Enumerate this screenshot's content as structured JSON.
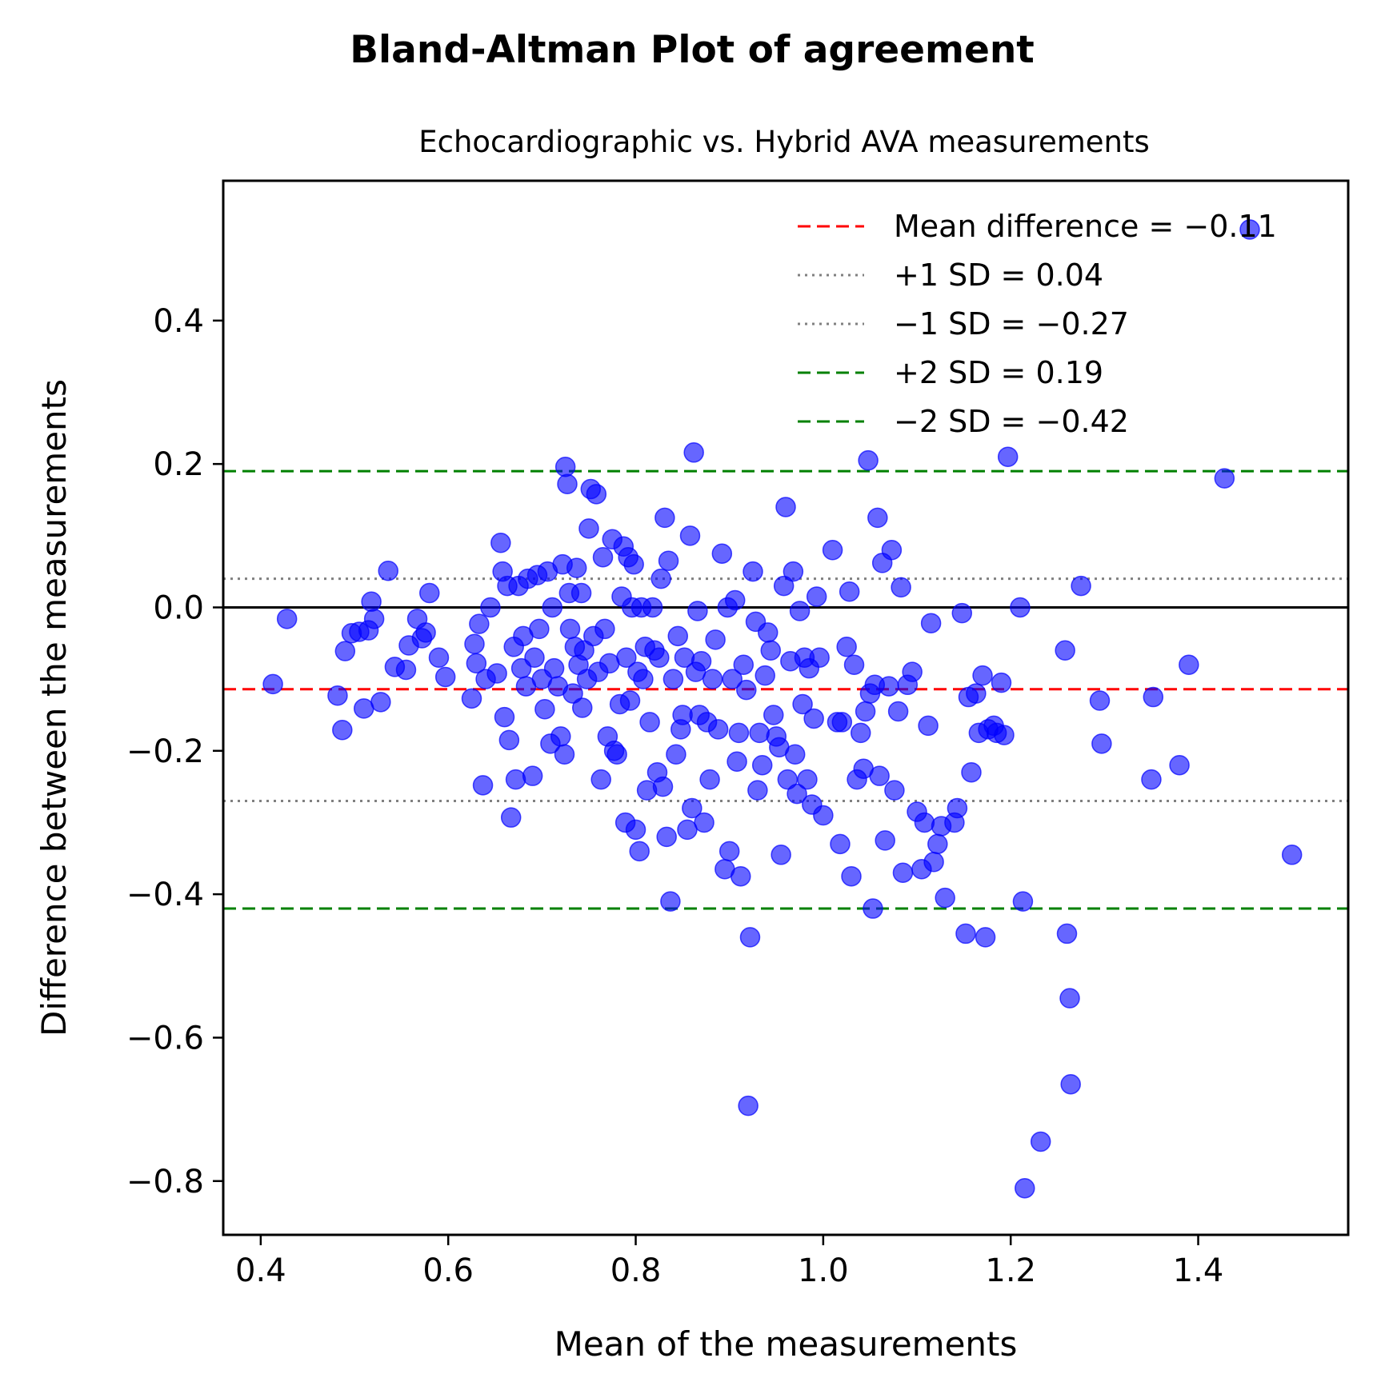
{
  "chart_data": {
    "type": "scatter",
    "title": "Bland-Altman Plot of agreement",
    "subtitle": "Echocardiographic vs. Hybrid AVA measurements",
    "xlabel": "Mean of the measurements",
    "ylabel": "Difference between the measurements",
    "xlim": [
      0.36,
      1.56
    ],
    "ylim": [
      -0.875,
      0.595
    ],
    "xticks": [
      {
        "value": 0.4,
        "label": "0.4"
      },
      {
        "value": 0.6,
        "label": "0.6"
      },
      {
        "value": 0.8,
        "label": "0.8"
      },
      {
        "value": 1.0,
        "label": "1.0"
      },
      {
        "value": 1.2,
        "label": "1.2"
      },
      {
        "value": 1.4,
        "label": "1.4"
      }
    ],
    "yticks": [
      {
        "value": 0.4,
        "label": "0.4"
      },
      {
        "value": 0.2,
        "label": "0.2"
      },
      {
        "value": 0.0,
        "label": "0.0"
      },
      {
        "value": -0.2,
        "label": "−0.2"
      },
      {
        "value": -0.4,
        "label": "−0.4"
      },
      {
        "value": -0.6,
        "label": "−0.6"
      },
      {
        "value": -0.8,
        "label": "−0.8"
      }
    ],
    "grid": false,
    "legend_position": "top-right",
    "point_color": "#0000ff",
    "reference_lines": [
      {
        "y": -0.114,
        "label": "Mean difference = −0.11",
        "color": "#ff0000",
        "style": "dashed"
      },
      {
        "y": 0.04,
        "label": "+1 SD = 0.04",
        "color": "#808080",
        "style": "dotted"
      },
      {
        "y": -0.27,
        "label": "−1 SD = −0.27",
        "color": "#808080",
        "style": "dotted"
      },
      {
        "y": 0.19,
        "label": "+2 SD = 0.19",
        "color": "#008000",
        "style": "dashed"
      },
      {
        "y": -0.42,
        "label": "−2 SD = −0.42",
        "color": "#008000",
        "style": "dashed"
      }
    ],
    "zero_line": {
      "y": 0.0,
      "color": "#000000"
    },
    "points": [
      [
        0.413,
        -0.107
      ],
      [
        0.428,
        -0.016
      ],
      [
        0.482,
        -0.123
      ],
      [
        0.487,
        -0.171
      ],
      [
        0.49,
        -0.061
      ],
      [
        0.497,
        -0.036
      ],
      [
        0.505,
        -0.034
      ],
      [
        0.51,
        -0.141
      ],
      [
        0.515,
        -0.032
      ],
      [
        0.518,
        0.008
      ],
      [
        0.521,
        -0.016
      ],
      [
        0.528,
        -0.132
      ],
      [
        0.536,
        0.051
      ],
      [
        0.543,
        -0.083
      ],
      [
        0.555,
        -0.087
      ],
      [
        0.558,
        -0.053
      ],
      [
        0.567,
        -0.016
      ],
      [
        0.572,
        -0.043
      ],
      [
        0.576,
        -0.035
      ],
      [
        0.58,
        0.02
      ],
      [
        0.59,
        -0.07
      ],
      [
        0.597,
        -0.097
      ],
      [
        0.625,
        -0.127
      ],
      [
        0.628,
        -0.051
      ],
      [
        0.63,
        -0.078
      ],
      [
        0.633,
        -0.023
      ],
      [
        0.637,
        -0.248
      ],
      [
        0.64,
        -0.1
      ],
      [
        0.645,
        0.0
      ],
      [
        0.652,
        -0.092
      ],
      [
        0.656,
        0.09
      ],
      [
        0.658,
        0.05
      ],
      [
        0.66,
        -0.153
      ],
      [
        0.663,
        0.03
      ],
      [
        0.665,
        -0.185
      ],
      [
        0.667,
        -0.293
      ],
      [
        0.67,
        -0.055
      ],
      [
        0.672,
        -0.24
      ],
      [
        0.675,
        0.03
      ],
      [
        0.678,
        -0.085
      ],
      [
        0.68,
        -0.04
      ],
      [
        0.683,
        -0.11
      ],
      [
        0.685,
        0.04
      ],
      [
        0.69,
        -0.235
      ],
      [
        0.692,
        -0.07
      ],
      [
        0.695,
        0.045
      ],
      [
        0.697,
        -0.03
      ],
      [
        0.7,
        -0.1
      ],
      [
        0.703,
        -0.142
      ],
      [
        0.706,
        0.05
      ],
      [
        0.709,
        -0.19
      ],
      [
        0.711,
        0.0
      ],
      [
        0.713,
        -0.085
      ],
      [
        0.717,
        -0.11
      ],
      [
        0.72,
        -0.18
      ],
      [
        0.722,
        0.06
      ],
      [
        0.724,
        -0.205
      ],
      [
        0.725,
        0.196
      ],
      [
        0.727,
        0.172
      ],
      [
        0.729,
        0.02
      ],
      [
        0.73,
        -0.03
      ],
      [
        0.733,
        -0.12
      ],
      [
        0.735,
        -0.055
      ],
      [
        0.737,
        0.055
      ],
      [
        0.739,
        -0.08
      ],
      [
        0.742,
        0.02
      ],
      [
        0.743,
        -0.14
      ],
      [
        0.745,
        -0.06
      ],
      [
        0.748,
        -0.1
      ],
      [
        0.75,
        0.11
      ],
      [
        0.752,
        0.165
      ],
      [
        0.755,
        -0.04
      ],
      [
        0.758,
        0.158
      ],
      [
        0.76,
        -0.09
      ],
      [
        0.763,
        -0.24
      ],
      [
        0.765,
        0.07
      ],
      [
        0.767,
        -0.03
      ],
      [
        0.77,
        -0.18
      ],
      [
        0.772,
        -0.078
      ],
      [
        0.775,
        0.095
      ],
      [
        0.777,
        -0.2
      ],
      [
        0.78,
        -0.205
      ],
      [
        0.783,
        -0.135
      ],
      [
        0.785,
        0.015
      ],
      [
        0.787,
        0.085
      ],
      [
        0.789,
        -0.3
      ],
      [
        0.79,
        -0.07
      ],
      [
        0.792,
        0.07
      ],
      [
        0.794,
        -0.13
      ],
      [
        0.796,
        0.0
      ],
      [
        0.798,
        0.06
      ],
      [
        0.8,
        -0.31
      ],
      [
        0.802,
        -0.09
      ],
      [
        0.804,
        -0.34
      ],
      [
        0.806,
        0.0
      ],
      [
        0.808,
        -0.1
      ],
      [
        0.81,
        -0.055
      ],
      [
        0.812,
        -0.255
      ],
      [
        0.815,
        -0.16
      ],
      [
        0.818,
        0.0
      ],
      [
        0.82,
        -0.06
      ],
      [
        0.823,
        -0.23
      ],
      [
        0.825,
        -0.07
      ],
      [
        0.827,
        0.04
      ],
      [
        0.829,
        -0.25
      ],
      [
        0.831,
        0.125
      ],
      [
        0.833,
        -0.32
      ],
      [
        0.835,
        0.065
      ],
      [
        0.837,
        -0.41
      ],
      [
        0.84,
        -0.1
      ],
      [
        0.843,
        -0.205
      ],
      [
        0.845,
        -0.04
      ],
      [
        0.848,
        -0.17
      ],
      [
        0.85,
        -0.15
      ],
      [
        0.852,
        -0.07
      ],
      [
        0.855,
        -0.31
      ],
      [
        0.858,
        0.1
      ],
      [
        0.86,
        -0.28
      ],
      [
        0.862,
        0.216
      ],
      [
        0.864,
        -0.09
      ],
      [
        0.866,
        -0.005
      ],
      [
        0.868,
        -0.15
      ],
      [
        0.87,
        -0.075
      ],
      [
        0.873,
        -0.3
      ],
      [
        0.876,
        -0.16
      ],
      [
        0.879,
        -0.24
      ],
      [
        0.882,
        -0.1
      ],
      [
        0.885,
        -0.045
      ],
      [
        0.888,
        -0.17
      ],
      [
        0.892,
        0.075
      ],
      [
        0.895,
        -0.365
      ],
      [
        0.898,
        0.0
      ],
      [
        0.9,
        -0.34
      ],
      [
        0.903,
        -0.1
      ],
      [
        0.906,
        0.01
      ],
      [
        0.908,
        -0.215
      ],
      [
        0.91,
        -0.175
      ],
      [
        0.912,
        -0.375
      ],
      [
        0.915,
        -0.08
      ],
      [
        0.918,
        -0.115
      ],
      [
        0.92,
        -0.695
      ],
      [
        0.922,
        -0.46
      ],
      [
        0.925,
        0.05
      ],
      [
        0.928,
        -0.02
      ],
      [
        0.93,
        -0.255
      ],
      [
        0.932,
        -0.175
      ],
      [
        0.935,
        -0.22
      ],
      [
        0.938,
        -0.095
      ],
      [
        0.941,
        -0.035
      ],
      [
        0.944,
        -0.06
      ],
      [
        0.947,
        -0.15
      ],
      [
        0.95,
        -0.18
      ],
      [
        0.953,
        -0.195
      ],
      [
        0.955,
        -0.345
      ],
      [
        0.958,
        0.03
      ],
      [
        0.96,
        0.14
      ],
      [
        0.962,
        -0.24
      ],
      [
        0.965,
        -0.075
      ],
      [
        0.968,
        0.05
      ],
      [
        0.97,
        -0.205
      ],
      [
        0.972,
        -0.26
      ],
      [
        0.975,
        -0.005
      ],
      [
        0.978,
        -0.135
      ],
      [
        0.98,
        -0.07
      ],
      [
        0.983,
        -0.24
      ],
      [
        0.985,
        -0.085
      ],
      [
        0.988,
        -0.275
      ],
      [
        0.99,
        -0.155
      ],
      [
        0.993,
        0.015
      ],
      [
        0.996,
        -0.07
      ],
      [
        1.0,
        -0.29
      ],
      [
        1.01,
        0.08
      ],
      [
        1.015,
        -0.16
      ],
      [
        1.018,
        -0.33
      ],
      [
        1.02,
        -0.16
      ],
      [
        1.025,
        -0.055
      ],
      [
        1.028,
        0.022
      ],
      [
        1.03,
        -0.375
      ],
      [
        1.033,
        -0.08
      ],
      [
        1.036,
        -0.24
      ],
      [
        1.04,
        -0.175
      ],
      [
        1.043,
        -0.225
      ],
      [
        1.045,
        -0.145
      ],
      [
        1.048,
        0.205
      ],
      [
        1.05,
        -0.12
      ],
      [
        1.053,
        -0.42
      ],
      [
        1.055,
        -0.108
      ],
      [
        1.058,
        0.125
      ],
      [
        1.06,
        -0.235
      ],
      [
        1.063,
        0.062
      ],
      [
        1.066,
        -0.325
      ],
      [
        1.07,
        -0.11
      ],
      [
        1.073,
        0.08
      ],
      [
        1.076,
        -0.255
      ],
      [
        1.08,
        -0.145
      ],
      [
        1.083,
        0.028
      ],
      [
        1.085,
        -0.37
      ],
      [
        1.09,
        -0.108
      ],
      [
        1.095,
        -0.09
      ],
      [
        1.1,
        -0.285
      ],
      [
        1.105,
        -0.365
      ],
      [
        1.108,
        -0.3
      ],
      [
        1.112,
        -0.165
      ],
      [
        1.115,
        -0.022
      ],
      [
        1.118,
        -0.355
      ],
      [
        1.122,
        -0.33
      ],
      [
        1.126,
        -0.305
      ],
      [
        1.13,
        -0.405
      ],
      [
        1.14,
        -0.3
      ],
      [
        1.143,
        -0.28
      ],
      [
        1.148,
        -0.008
      ],
      [
        1.152,
        -0.455
      ],
      [
        1.155,
        -0.125
      ],
      [
        1.158,
        -0.23
      ],
      [
        1.163,
        -0.12
      ],
      [
        1.166,
        -0.175
      ],
      [
        1.17,
        -0.095
      ],
      [
        1.173,
        -0.46
      ],
      [
        1.176,
        -0.17
      ],
      [
        1.182,
        -0.165
      ],
      [
        1.185,
        -0.175
      ],
      [
        1.19,
        -0.105
      ],
      [
        1.193,
        -0.178
      ],
      [
        1.197,
        0.21
      ],
      [
        1.21,
        0.0
      ],
      [
        1.213,
        -0.41
      ],
      [
        1.215,
        -0.81
      ],
      [
        1.232,
        -0.745
      ],
      [
        1.258,
        -0.06
      ],
      [
        1.26,
        -0.455
      ],
      [
        1.263,
        -0.545
      ],
      [
        1.264,
        -0.665
      ],
      [
        1.275,
        0.03
      ],
      [
        1.295,
        -0.13
      ],
      [
        1.297,
        -0.19
      ],
      [
        1.35,
        -0.24
      ],
      [
        1.352,
        -0.125
      ],
      [
        1.38,
        -0.22
      ],
      [
        1.39,
        -0.08
      ],
      [
        1.428,
        0.18
      ],
      [
        1.455,
        0.527
      ],
      [
        1.5,
        -0.345
      ]
    ]
  }
}
